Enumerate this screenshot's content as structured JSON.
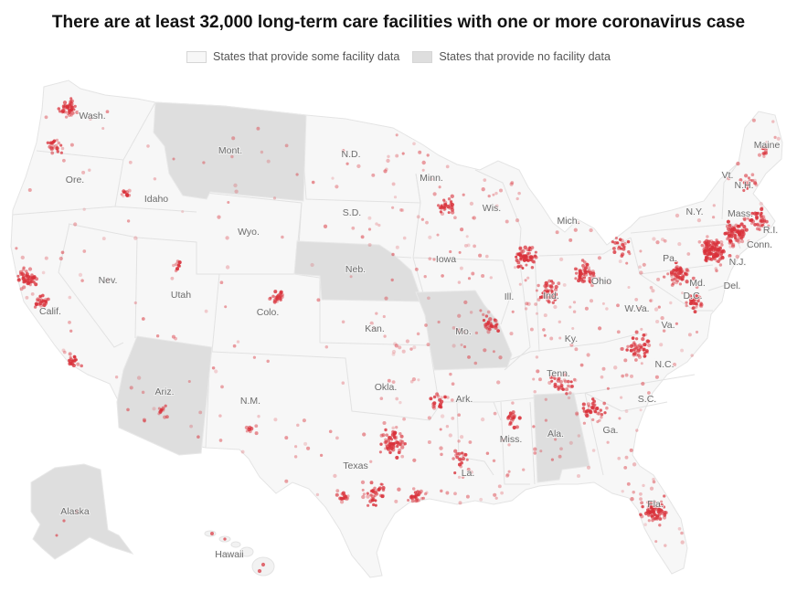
{
  "title": "There are at least 32,000 long-term care facilities with one or more coronavirus case",
  "legend": {
    "some_label": "States that provide some facility data",
    "none_label": "States that provide no facility data"
  },
  "colors": {
    "some_data_fill": "#f7f7f7",
    "no_data_fill": "#dedede",
    "border": "#e2e2e2",
    "dot": "#d9313a"
  },
  "states_no_data": [
    "Mont.",
    "Ariz.",
    "Neb.",
    "Mo.",
    "Ala.",
    "Alaska"
  ],
  "state_labels": [
    "Wash.",
    "Ore.",
    "Calif.",
    "Nev.",
    "Idaho",
    "Mont.",
    "Wyo.",
    "Utah",
    "Colo.",
    "Ariz.",
    "N.M.",
    "N.D.",
    "S.D.",
    "Neb.",
    "Kan.",
    "Okla.",
    "Texas",
    "Minn.",
    "Iowa",
    "Mo.",
    "Ark.",
    "La.",
    "Wis.",
    "Ill.",
    "Mich.",
    "Ind.",
    "Ohio",
    "Ky.",
    "Tenn.",
    "Miss.",
    "Ala.",
    "Ga.",
    "Fla.",
    "S.C.",
    "N.C.",
    "Va.",
    "W.Va.",
    "Pa.",
    "N.Y.",
    "Vt.",
    "N.H.",
    "Maine",
    "Mass.",
    "R.I.",
    "Conn.",
    "N.J.",
    "Del.",
    "Md.",
    "D.C.",
    "Alaska",
    "Hawaii"
  ]
}
